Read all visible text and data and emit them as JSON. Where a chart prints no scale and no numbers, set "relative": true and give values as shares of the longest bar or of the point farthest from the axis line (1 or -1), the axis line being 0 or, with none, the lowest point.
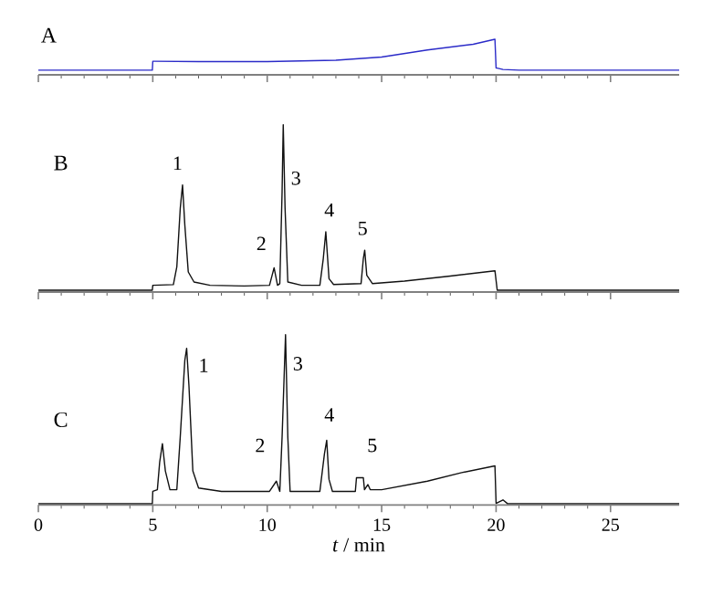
{
  "chart_data": [
    {
      "type": "line",
      "title": "A",
      "relative": true,
      "xlim": [
        0,
        28
      ],
      "xticks": [
        0,
        5,
        10,
        15,
        20,
        25
      ],
      "tick_labels": false,
      "series": [
        {
          "color": "#2a2ac8",
          "x": [
            0,
            4.98,
            5.0,
            5.05,
            7,
            10,
            13,
            15,
            17,
            19,
            19.95,
            20.0,
            20.05,
            20.3,
            21,
            28
          ],
          "values": [
            0.13,
            0.13,
            0.38,
            0.38,
            0.37,
            0.37,
            0.41,
            0.5,
            0.7,
            0.86,
            1.0,
            0.19,
            0.19,
            0.15,
            0.13,
            0.13
          ]
        }
      ]
    },
    {
      "type": "line",
      "title": "B",
      "relative": true,
      "xlim": [
        0,
        28
      ],
      "xticks": [
        0,
        5,
        10,
        15,
        20,
        25
      ],
      "tick_labels": false,
      "annotations": [
        "1",
        "2",
        "3",
        "4",
        "5"
      ],
      "series": [
        {
          "color": "#111111",
          "x": [
            0,
            4.98,
            5.0,
            5.9,
            6.05,
            6.2,
            6.3,
            6.4,
            6.55,
            6.8,
            7.5,
            9.0,
            10.1,
            10.3,
            10.45,
            10.55,
            10.65,
            10.7,
            10.78,
            10.9,
            11.5,
            12.3,
            12.45,
            12.56,
            12.7,
            12.9,
            14.1,
            14.2,
            14.26,
            14.35,
            14.6,
            16,
            18,
            19.95,
            20.05,
            28
          ],
          "values": [
            0.011,
            0.011,
            0.04,
            0.044,
            0.15,
            0.5,
            0.64,
            0.4,
            0.12,
            0.06,
            0.04,
            0.036,
            0.04,
            0.145,
            0.04,
            0.05,
            0.6,
            1.0,
            0.5,
            0.06,
            0.04,
            0.04,
            0.2,
            0.36,
            0.08,
            0.045,
            0.05,
            0.2,
            0.25,
            0.1,
            0.05,
            0.065,
            0.095,
            0.127,
            0.011,
            0.011
          ]
        }
      ]
    },
    {
      "type": "line",
      "title": "C",
      "xlabel": "*t* / min",
      "relative": true,
      "xlim": [
        0,
        28
      ],
      "xticks": [
        0,
        5,
        10,
        15,
        20,
        25
      ],
      "tick_labels": "x",
      "annotations": [
        "1",
        "2",
        "3",
        "4",
        "5"
      ],
      "series": [
        {
          "color": "#111111",
          "x": [
            0,
            4.98,
            5.0,
            5.2,
            5.3,
            5.42,
            5.55,
            5.75,
            6.05,
            6.2,
            6.4,
            6.48,
            6.58,
            6.75,
            7.0,
            8,
            10.1,
            10.4,
            10.55,
            10.65,
            10.8,
            10.9,
            11.0,
            12.3,
            12.5,
            12.6,
            12.7,
            12.85,
            13.85,
            13.9,
            14.2,
            14.25,
            14.4,
            14.5,
            15,
            17,
            18.5,
            19.95,
            20.0,
            20.3,
            20.5,
            28
          ],
          "values": [
            0.008,
            0.008,
            0.08,
            0.09,
            0.25,
            0.36,
            0.2,
            0.09,
            0.09,
            0.4,
            0.85,
            0.92,
            0.7,
            0.2,
            0.1,
            0.08,
            0.08,
            0.14,
            0.08,
            0.4,
            1.0,
            0.4,
            0.08,
            0.08,
            0.3,
            0.38,
            0.15,
            0.08,
            0.08,
            0.16,
            0.16,
            0.09,
            0.12,
            0.09,
            0.09,
            0.14,
            0.19,
            0.23,
            0.01,
            0.03,
            0.008,
            0.008
          ]
        }
      ]
    }
  ]
}
